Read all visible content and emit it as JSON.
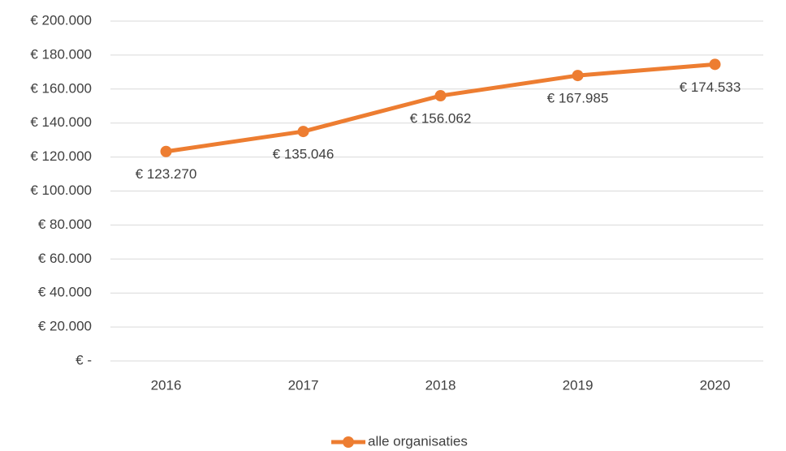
{
  "chart_data": {
    "type": "line",
    "categories": [
      "2016",
      "2017",
      "2018",
      "2019",
      "2020"
    ],
    "series": [
      {
        "name": "alle organisaties",
        "color": "#ed7d31",
        "values": [
          123270,
          135046,
          156062,
          167985,
          174533
        ],
        "value_labels": [
          "€ 123.270",
          "€ 135.046",
          "€ 156.062",
          "€ 167.985",
          "€ 174.533"
        ]
      }
    ],
    "ylim": [
      0,
      200000
    ],
    "yticks": [
      {
        "value": 0,
        "label": "€ -"
      },
      {
        "value": 20000,
        "label": "€ 20.000"
      },
      {
        "value": 40000,
        "label": "€ 40.000"
      },
      {
        "value": 60000,
        "label": "€ 60.000"
      },
      {
        "value": 80000,
        "label": "€ 80.000"
      },
      {
        "value": 100000,
        "label": "€ 100.000"
      },
      {
        "value": 120000,
        "label": "€ 120.000"
      },
      {
        "value": 140000,
        "label": "€ 140.000"
      },
      {
        "value": 160000,
        "label": "€ 160.000"
      },
      {
        "value": 180000,
        "label": "€ 180.000"
      },
      {
        "value": 200000,
        "label": "€ 200.000"
      }
    ],
    "grid": true,
    "legend": "bottom"
  }
}
